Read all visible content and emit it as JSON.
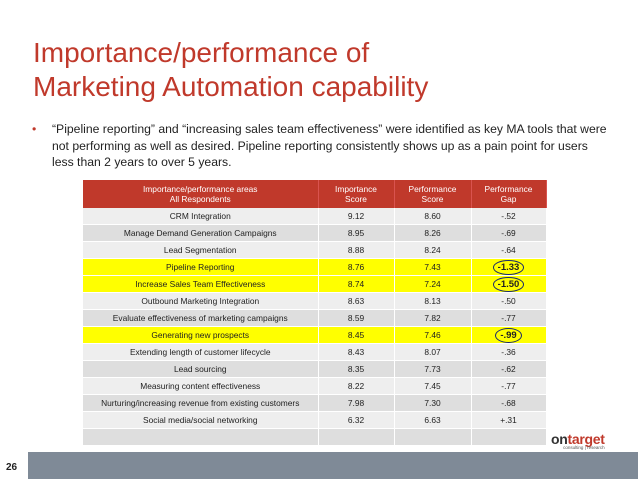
{
  "title": {
    "line1": "Importance/performance of",
    "line2": "Marketing Automation capability"
  },
  "bullet": {
    "symbol": "•",
    "text": "“Pipeline reporting” and “increasing sales team effectiveness” were identified as key MA tools that were not performing as well as desired. Pipeline reporting consistently shows up as a pain point for users less than 2 years to over 5 years."
  },
  "table": {
    "headers": {
      "area_line1": "Importance/performance areas",
      "area_line2": "All Respondents",
      "importance_line1": "Importance",
      "importance_line2": "Score",
      "performance_line1": "Performance",
      "performance_line2": "Score",
      "gap_line1": "Performance",
      "gap_line2": "Gap"
    },
    "rows": [
      {
        "area": "CRM Integration",
        "importance": "9.12",
        "performance": "8.60",
        "gap": "-.52"
      },
      {
        "area": "Manage Demand Generation Campaigns",
        "importance": "8.95",
        "performance": "8.26",
        "gap": "-.69"
      },
      {
        "area": "Lead Segmentation",
        "importance": "8.88",
        "performance": "8.24",
        "gap": "-.64"
      },
      {
        "area": "Pipeline Reporting",
        "importance": "8.76",
        "performance": "7.43",
        "gap": "-1.33"
      },
      {
        "area": "Increase Sales Team Effectiveness",
        "importance": "8.74",
        "performance": "7.24",
        "gap": "-1.50"
      },
      {
        "area": "Outbound Marketing Integration",
        "importance": "8.63",
        "performance": "8.13",
        "gap": "-.50"
      },
      {
        "area": "Evaluate effectiveness of marketing campaigns",
        "importance": "8.59",
        "performance": "7.82",
        "gap": "-.77"
      },
      {
        "area": "Generating new prospects",
        "importance": "8.45",
        "performance": "7.46",
        "gap": "-.99"
      },
      {
        "area": "Extending length of customer lifecycle",
        "importance": "8.43",
        "performance": "8.07",
        "gap": "-.36"
      },
      {
        "area": "Lead sourcing",
        "importance": "8.35",
        "performance": "7.73",
        "gap": "-.62"
      },
      {
        "area": "Measuring content effectiveness",
        "importance": "8.22",
        "performance": "7.45",
        "gap": "-.77"
      },
      {
        "area": "Nurturing/increasing revenue from existing customers",
        "importance": "7.98",
        "performance": "7.30",
        "gap": "-.68"
      },
      {
        "area": "Social media/social networking",
        "importance": "6.32",
        "performance": "6.63",
        "gap": "+.31"
      },
      {
        "area": "",
        "importance": "",
        "performance": "",
        "gap": ""
      }
    ],
    "highlight_color": "#ffff00",
    "header_color": "#c0392b"
  },
  "footer": {
    "page_number": "26",
    "logo_on": "on",
    "logo_target": "target",
    "logo_tagline": "consulting | research"
  }
}
